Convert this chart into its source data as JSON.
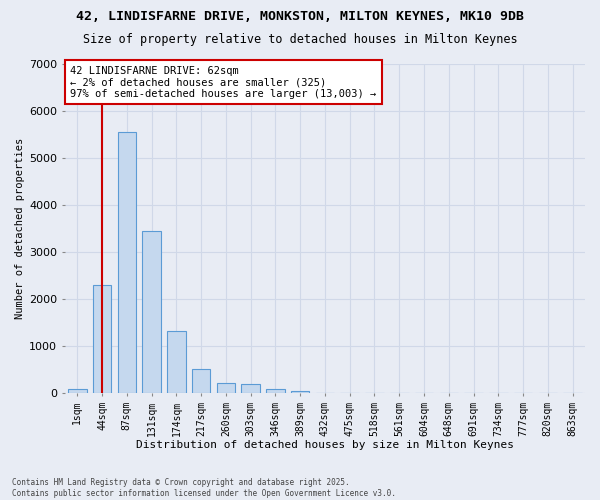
{
  "title_line1": "42, LINDISFARNE DRIVE, MONKSTON, MILTON KEYNES, MK10 9DB",
  "title_line2": "Size of property relative to detached houses in Milton Keynes",
  "xlabel": "Distribution of detached houses by size in Milton Keynes",
  "ylabel": "Number of detached properties",
  "footnote": "Contains HM Land Registry data © Crown copyright and database right 2025.\nContains public sector information licensed under the Open Government Licence v3.0.",
  "bar_labels": [
    "1sqm",
    "44sqm",
    "87sqm",
    "131sqm",
    "174sqm",
    "217sqm",
    "260sqm",
    "303sqm",
    "346sqm",
    "389sqm",
    "432sqm",
    "475sqm",
    "518sqm",
    "561sqm",
    "604sqm",
    "648sqm",
    "691sqm",
    "734sqm",
    "777sqm",
    "820sqm",
    "863sqm"
  ],
  "bar_values": [
    80,
    2300,
    5550,
    3450,
    1320,
    520,
    210,
    190,
    90,
    50,
    5,
    0,
    0,
    0,
    0,
    0,
    0,
    0,
    0,
    0,
    0
  ],
  "bar_color": "#c5d8ee",
  "bar_edge_color": "#5b9bd5",
  "background_color": "#e8ecf4",
  "grid_color": "#d0d8e8",
  "ylim": [
    0,
    7000
  ],
  "yticks": [
    0,
    1000,
    2000,
    3000,
    4000,
    5000,
    6000,
    7000
  ],
  "vline_color": "#cc0000",
  "vline_x": 1.0,
  "annotation_title": "42 LINDISFARNE DRIVE: 62sqm",
  "annotation_line2": "← 2% of detached houses are smaller (325)",
  "annotation_line3": "97% of semi-detached houses are larger (13,003) →",
  "annotation_box_edgecolor": "#cc0000",
  "bar_width": 0.75
}
